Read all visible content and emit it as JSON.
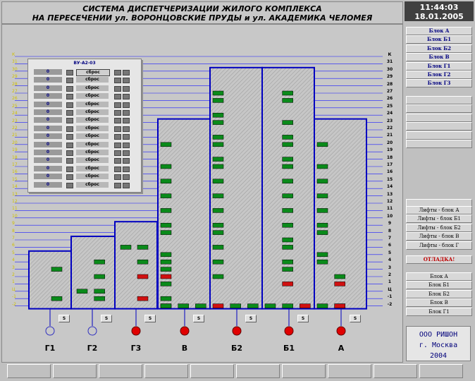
{
  "header": {
    "title_line1": "СИСТЕМА ДИСПЕТЧЕРИЗАЦИИ ЖИЛОГО КОМПЛЕКСА",
    "title_line2": "НА ПЕРЕСЕЧЕНИИ ул. ВОРОНЦОВСКИЕ ПРУДЫ и ул. АКАДЕМИКА ЧЕЛОМЕЯ"
  },
  "clock": {
    "time": "11:44:03",
    "date": "18.01.2005"
  },
  "right_level_labels": [
    "К",
    "31",
    "30",
    "29",
    "28",
    "27",
    "26",
    "25",
    "24",
    "23",
    "22",
    "21",
    "20",
    "19",
    "18",
    "17",
    "16",
    "15",
    "14",
    "13",
    "12",
    "11",
    "10",
    "9",
    "8",
    "7",
    "6",
    "5",
    "4",
    "3",
    "2",
    "1",
    "Ц",
    "-1",
    "-2"
  ],
  "left_level_labels": [
    "К",
    "31",
    "30",
    "29",
    "28",
    "27",
    "26",
    "25",
    "24",
    "23",
    "22",
    "21",
    "20",
    "19",
    "18",
    "17",
    "16",
    "15",
    "14",
    "13",
    "12",
    "11",
    "10",
    "9",
    "8",
    "7",
    "6",
    "5",
    "4",
    "3",
    "2",
    "1",
    "Ц",
    "-1",
    "-2"
  ],
  "buildings": [
    {
      "name": "Г1",
      "status_color": "blue-outline",
      "s_label": "S"
    },
    {
      "name": "Г2",
      "status_color": "blue-outline",
      "s_label": "S"
    },
    {
      "name": "Г3",
      "status_color": "red",
      "s_label": "S"
    },
    {
      "name": "В",
      "status_color": "red",
      "s_label": "S"
    },
    {
      "name": "Б2",
      "status_color": "red",
      "s_label": "S"
    },
    {
      "name": "Б1",
      "status_color": "red",
      "s_label": "S"
    },
    {
      "name": "А",
      "status_color": "red",
      "s_label": "S"
    }
  ],
  "popup": {
    "title": "ВУ-А2-03",
    "rows": [
      {
        "value": "0",
        "reset": "сброс"
      },
      {
        "value": "0",
        "reset": "сброс"
      },
      {
        "value": "0",
        "reset": "сброс"
      },
      {
        "value": "0",
        "reset": "сброс"
      },
      {
        "value": "0",
        "reset": "сброс"
      },
      {
        "value": "0",
        "reset": "сброс"
      },
      {
        "value": "0",
        "reset": "сброс"
      },
      {
        "value": "0",
        "reset": "сброс"
      },
      {
        "value": "0",
        "reset": "сброс"
      },
      {
        "value": "0",
        "reset": "сброс"
      },
      {
        "value": "0",
        "reset": "сброс"
      },
      {
        "value": "0",
        "reset": "сброс"
      },
      {
        "value": "0",
        "reset": "сброс"
      },
      {
        "value": "0",
        "reset": "сброс"
      },
      {
        "value": "0",
        "reset": "сброс"
      }
    ]
  },
  "sidebar": {
    "blocks": [
      "Блок А",
      "Блок Б1",
      "Блок Б2",
      "Блок В",
      "Блок Г1",
      "Блок Г2",
      "Блок Г3"
    ],
    "lifts": [
      "Лифты - блок А",
      "Лифты - блок Б1",
      "Лифты - блок Б2",
      "Лифты - блок В",
      "Лифты - блок Г"
    ],
    "debug": "ОТЛАДКА!",
    "debug_blocks": [
      "Блок А",
      "Блок Б1",
      "Блок Б2",
      "Блок В",
      "Блок Г1"
    ]
  },
  "company": {
    "line1": "ООО РИШОН",
    "line2": "г. Москва",
    "line3": "2004"
  },
  "colors": {
    "grid_line": "#1a1aff",
    "building_border": "#0000c0",
    "ok": "#0a8a1a",
    "alarm": "#d01010",
    "level_left": "#d0c000"
  }
}
